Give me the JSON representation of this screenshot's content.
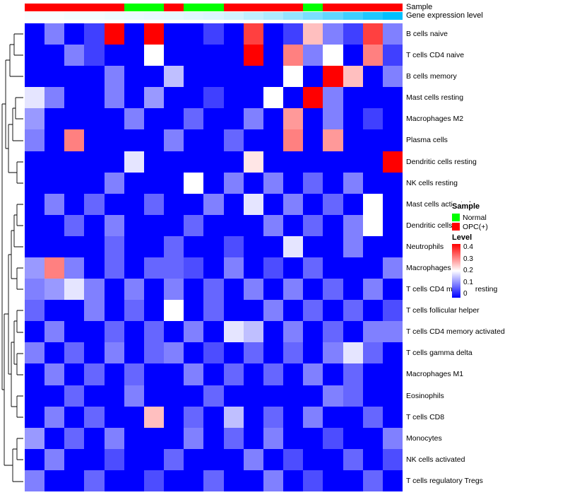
{
  "chart_data": {
    "type": "heatmap",
    "title": "",
    "rows": [
      "B cells naive",
      "T cells CD4 naive",
      "B cells memory",
      "Mast cells resting",
      "Macrophages M2",
      "Plasma cells",
      "Dendritic cells resting",
      "NK cells resting",
      "Mast cells activated",
      "Dendritic cells activated",
      "Neutrophils",
      "Macrophages M0",
      "T cells CD4 memory resting",
      "T cells follicular helper",
      "T cells CD4 memory activated",
      "T cells gamma delta",
      "Macrophages M1",
      "Eosinophils",
      "T cells CD8",
      "Monocytes",
      "NK cells activated",
      "T cells regulatory Tregs"
    ],
    "n_columns": 19,
    "value_range": [
      0,
      0.4
    ],
    "colormap": {
      "low": "#0000FF",
      "mid": "#FFFFFF",
      "high": "#FF0000",
      "mid_value": 0.2
    },
    "values": [
      [
        0,
        0.1,
        0,
        0.05,
        0.4,
        0,
        0.4,
        0,
        0,
        0.05,
        0,
        0.35,
        0,
        0.05,
        0.25,
        0.1,
        0.05,
        0.35,
        0.1
      ],
      [
        0,
        0,
        0.1,
        0.05,
        0,
        0,
        0.2,
        0,
        0,
        0,
        0,
        0.4,
        0,
        0.3,
        0.1,
        0.2,
        0,
        0.3,
        0.05
      ],
      [
        0,
        0,
        0,
        0,
        0.1,
        0,
        0,
        0.15,
        0,
        0,
        0,
        0,
        0,
        0.2,
        0,
        0.4,
        0.25,
        0,
        0.1
      ],
      [
        0.18,
        0.1,
        0,
        0,
        0.1,
        0,
        0.12,
        0,
        0,
        0.05,
        0,
        0,
        0.2,
        0,
        0.4,
        0.1,
        0,
        0,
        0
      ],
      [
        0.12,
        0,
        0,
        0,
        0,
        0.1,
        0,
        0,
        0.08,
        0,
        0,
        0.1,
        0,
        0.28,
        0,
        0.1,
        0,
        0.05,
        0
      ],
      [
        0.1,
        0,
        0.3,
        0,
        0,
        0,
        0,
        0.1,
        0,
        0,
        0.08,
        0,
        0,
        0.3,
        0,
        0.28,
        0,
        0,
        0
      ],
      [
        0,
        0,
        0,
        0,
        0,
        0.18,
        0,
        0,
        0,
        0,
        0,
        0.22,
        0,
        0,
        0,
        0,
        0,
        0,
        0.4
      ],
      [
        0,
        0,
        0,
        0,
        0.1,
        0,
        0,
        0,
        0.2,
        0,
        0.1,
        0,
        0.1,
        0,
        0.08,
        0,
        0.1,
        0,
        0
      ],
      [
        0,
        0.1,
        0,
        0.08,
        0,
        0,
        0.08,
        0,
        0,
        0.1,
        0,
        0.18,
        0,
        0.1,
        0,
        0.08,
        0,
        0.2,
        0
      ],
      [
        0,
        0,
        0.08,
        0,
        0.1,
        0,
        0,
        0,
        0.08,
        0,
        0,
        0,
        0.1,
        0,
        0.08,
        0,
        0.1,
        0.2,
        0
      ],
      [
        0,
        0,
        0,
        0,
        0.08,
        0,
        0,
        0.08,
        0,
        0,
        0.06,
        0,
        0,
        0.18,
        0,
        0,
        0.1,
        0,
        0
      ],
      [
        0.12,
        0.3,
        0.1,
        0,
        0.08,
        0,
        0.08,
        0.08,
        0.06,
        0,
        0.1,
        0,
        0.06,
        0,
        0.08,
        0,
        0,
        0,
        0.1
      ],
      [
        0.1,
        0.12,
        0.18,
        0.1,
        0,
        0.1,
        0,
        0.1,
        0,
        0.08,
        0,
        0.1,
        0,
        0.1,
        0,
        0.08,
        0,
        0.1,
        0
      ],
      [
        0.08,
        0,
        0,
        0.1,
        0,
        0.08,
        0,
        0.2,
        0,
        0.08,
        0,
        0,
        0.1,
        0,
        0.08,
        0,
        0.08,
        0,
        0.06
      ],
      [
        0,
        0.1,
        0,
        0,
        0.08,
        0,
        0.08,
        0,
        0.1,
        0,
        0.18,
        0.15,
        0,
        0.1,
        0,
        0.08,
        0,
        0.1,
        0.1
      ],
      [
        0.1,
        0,
        0.08,
        0,
        0.1,
        0,
        0.08,
        0.1,
        0,
        0.06,
        0,
        0.08,
        0,
        0.08,
        0,
        0.1,
        0.18,
        0.08,
        0
      ],
      [
        0,
        0.1,
        0,
        0.08,
        0,
        0.08,
        0,
        0,
        0.1,
        0,
        0.08,
        0,
        0.08,
        0,
        0.1,
        0,
        0.08,
        0,
        0
      ],
      [
        0,
        0,
        0.08,
        0,
        0,
        0.1,
        0,
        0,
        0,
        0.08,
        0,
        0,
        0,
        0,
        0,
        0.1,
        0.08,
        0,
        0
      ],
      [
        0,
        0.1,
        0,
        0.08,
        0,
        0,
        0.25,
        0,
        0.08,
        0,
        0.15,
        0,
        0.08,
        0,
        0.1,
        0,
        0,
        0.08,
        0
      ],
      [
        0.12,
        0,
        0.08,
        0,
        0.1,
        0,
        0,
        0,
        0.1,
        0,
        0.08,
        0,
        0.1,
        0,
        0,
        0.06,
        0,
        0,
        0.1
      ],
      [
        0,
        0.1,
        0,
        0,
        0.06,
        0,
        0,
        0.08,
        0,
        0,
        0,
        0.1,
        0,
        0.06,
        0,
        0,
        0.08,
        0,
        0.06
      ],
      [
        0.1,
        0,
        0,
        0.08,
        0,
        0,
        0.06,
        0,
        0,
        0.08,
        0,
        0,
        0.1,
        0,
        0.06,
        0,
        0,
        0.08,
        0
      ]
    ],
    "column_annotations": {
      "sample": {
        "label": "Sample",
        "values": [
          "OPC(+)",
          "OPC(+)",
          "OPC(+)",
          "OPC(+)",
          "OPC(+)",
          "Normal",
          "Normal",
          "OPC(+)",
          "Normal",
          "Normal",
          "OPC(+)",
          "OPC(+)",
          "OPC(+)",
          "OPC(+)",
          "Normal",
          "OPC(+)",
          "OPC(+)",
          "OPC(+)",
          "OPC(+)"
        ],
        "colors": {
          "Normal": "#00FF00",
          "OPC(+)": "#FF0000"
        }
      },
      "gene_expression": {
        "label": "Gene expression level",
        "values": [
          0.03,
          0.03,
          0.05,
          0.05,
          0.07,
          0.08,
          0.09,
          0.1,
          0.12,
          0.14,
          0.18,
          0.25,
          0.32,
          0.42,
          0.52,
          0.62,
          0.75,
          0.88,
          1.0
        ],
        "colors": {
          "low": "#FFFFFF",
          "high": "#00BFFF"
        }
      }
    },
    "legends": {
      "sample": {
        "title": "Sample",
        "items": [
          {
            "label": "Normal",
            "color": "#00FF00"
          },
          {
            "label": "OPC(+)",
            "color": "#FF0000"
          }
        ]
      },
      "level": {
        "title": "Level",
        "ticks": [
          "0.4",
          "0.3",
          "0.2",
          "0.1",
          "0"
        ],
        "gradient": [
          "#FF0000",
          "#FFFFFF",
          "#0000FF"
        ]
      }
    },
    "layout": {
      "row_dendrogram": true,
      "column_labels": false,
      "grid": false,
      "legend_position": "right"
    }
  }
}
